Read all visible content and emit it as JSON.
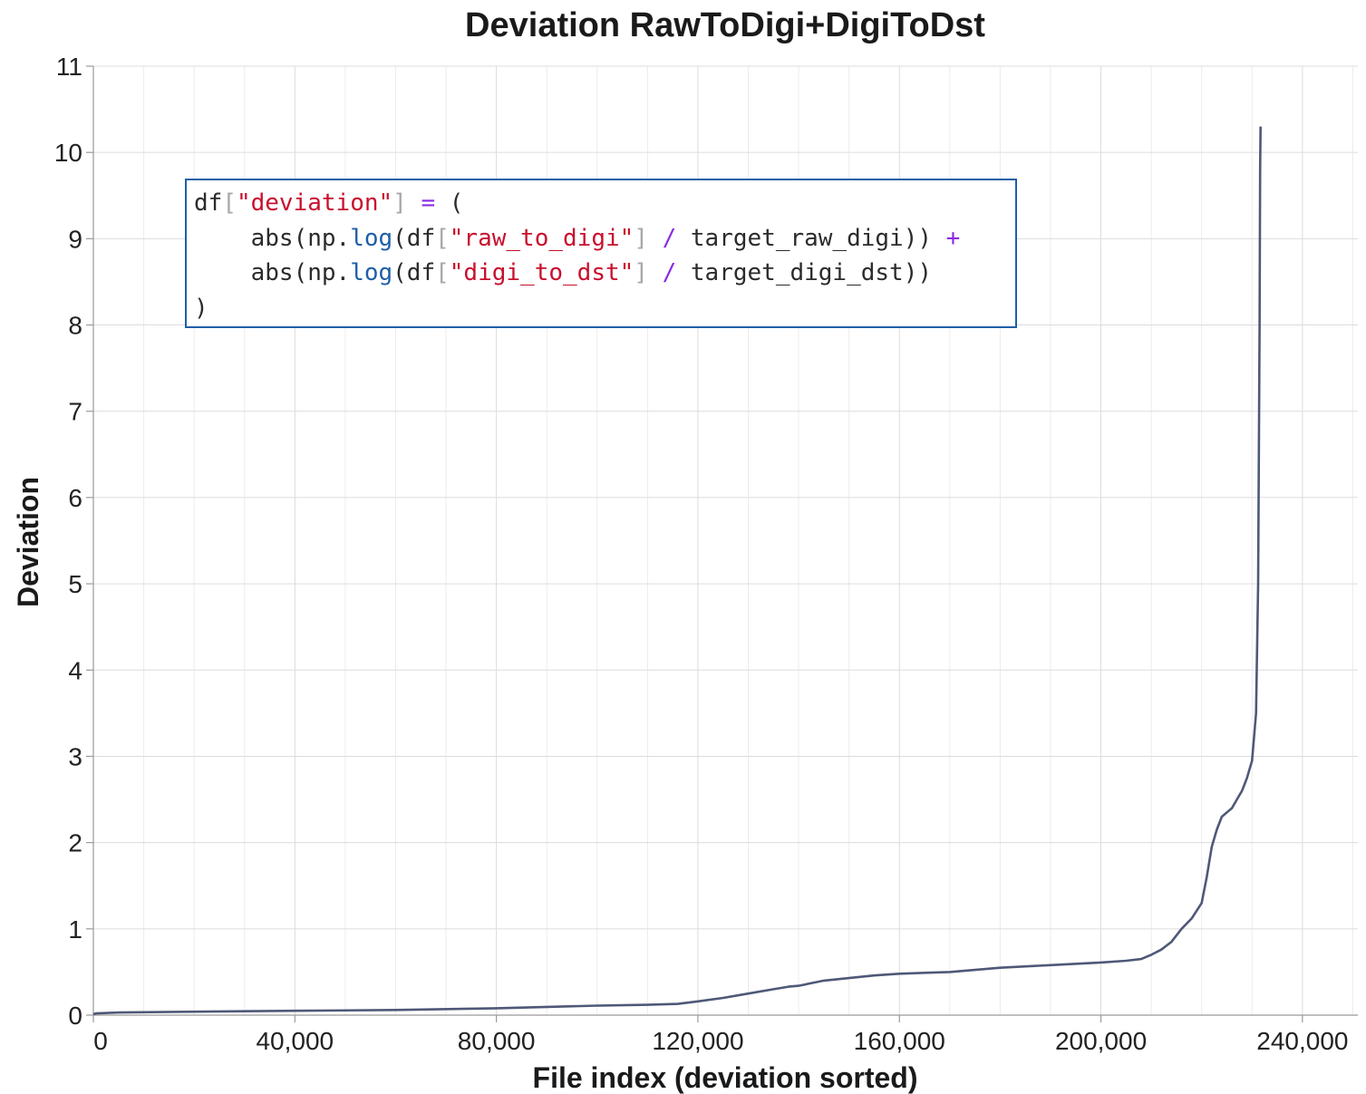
{
  "chart_data": {
    "type": "line",
    "title": "Deviation RawToDigi+DigiToDst",
    "xlabel": "File index (deviation sorted)",
    "ylabel": "Deviation",
    "xlim": [
      0,
      251000
    ],
    "ylim": [
      0,
      11
    ],
    "x_ticks": [
      0,
      40000,
      80000,
      120000,
      160000,
      200000,
      240000
    ],
    "x_tick_labels": [
      "0",
      "40,000",
      "80,000",
      "120,000",
      "160,000",
      "200,000",
      "240,000"
    ],
    "y_ticks": [
      0,
      1,
      2,
      3,
      4,
      5,
      6,
      7,
      8,
      9,
      10,
      11
    ],
    "y_tick_labels": [
      "0",
      "1",
      "2",
      "3",
      "4",
      "5",
      "6",
      "7",
      "8",
      "9",
      "10",
      "11"
    ],
    "grid": true,
    "series": [
      {
        "color": "#4e5878",
        "x": [
          0,
          500,
          5000,
          20000,
          40000,
          60000,
          80000,
          100000,
          110000,
          116000,
          120000,
          125000,
          130000,
          135000,
          138000,
          140000,
          145000,
          150000,
          155000,
          160000,
          170000,
          180000,
          190000,
          200000,
          205000,
          208000,
          210000,
          212000,
          214000,
          216000,
          218000,
          220000,
          221000,
          222000,
          223000,
          224000,
          225000,
          226000,
          227000,
          228000,
          229000,
          230000,
          230800,
          231200,
          231500,
          231600,
          231700
        ],
        "y": [
          0.01,
          0.02,
          0.03,
          0.04,
          0.05,
          0.06,
          0.08,
          0.11,
          0.12,
          0.13,
          0.16,
          0.2,
          0.25,
          0.3,
          0.33,
          0.34,
          0.4,
          0.43,
          0.46,
          0.48,
          0.5,
          0.55,
          0.58,
          0.61,
          0.63,
          0.65,
          0.7,
          0.76,
          0.85,
          1.0,
          1.12,
          1.3,
          1.6,
          1.95,
          2.15,
          2.3,
          2.35,
          2.4,
          2.5,
          2.6,
          2.75,
          2.95,
          3.5,
          5.0,
          8.0,
          9.8,
          10.3
        ]
      }
    ]
  },
  "code_box": {
    "lines": [
      [
        [
          "default",
          "df"
        ],
        [
          "bracket",
          "["
        ],
        [
          "string",
          "\"deviation\""
        ],
        [
          "bracket",
          "]"
        ],
        [
          "default",
          " "
        ],
        [
          "op",
          "="
        ],
        [
          "default",
          " ("
        ]
      ],
      [
        [
          "default",
          "    abs(np."
        ],
        [
          "func",
          "log"
        ],
        [
          "default",
          "(df"
        ],
        [
          "bracket",
          "["
        ],
        [
          "string",
          "\"raw_to_digi\""
        ],
        [
          "bracket",
          "]"
        ],
        [
          "default",
          " "
        ],
        [
          "op",
          "/"
        ],
        [
          "default",
          " target_raw_digi)) "
        ],
        [
          "op",
          "+"
        ]
      ],
      [
        [
          "default",
          "    abs(np."
        ],
        [
          "func",
          "log"
        ],
        [
          "default",
          "(df"
        ],
        [
          "bracket",
          "["
        ],
        [
          "string",
          "\"digi_to_dst\""
        ],
        [
          "bracket",
          "]"
        ],
        [
          "default",
          " "
        ],
        [
          "op",
          "/"
        ],
        [
          "default",
          " target_digi_dst))"
        ]
      ],
      [
        [
          "default",
          ")"
        ]
      ]
    ]
  }
}
